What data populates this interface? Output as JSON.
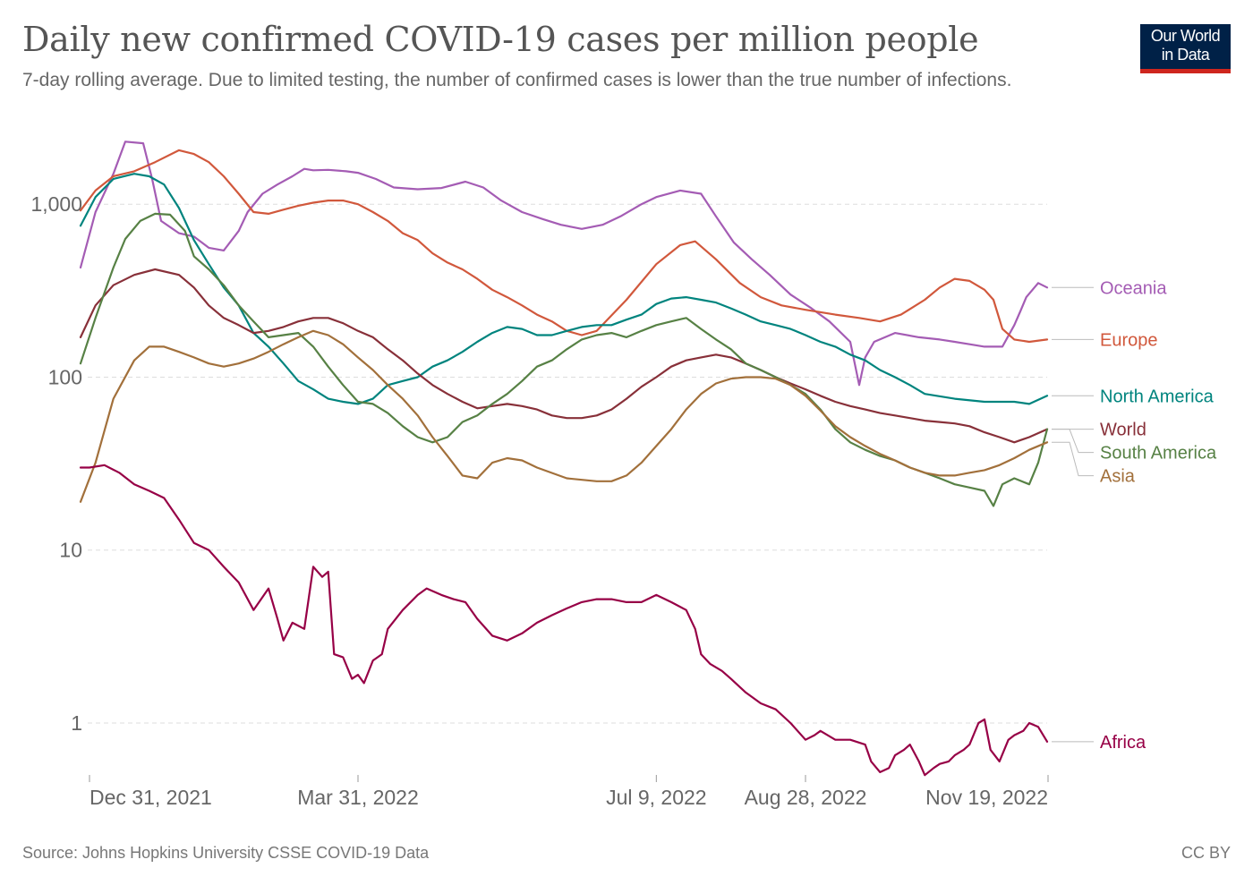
{
  "header": {
    "title": "Daily new confirmed COVID-19 cases per million people",
    "subtitle": "7-day rolling average. Due to limited testing, the number of confirmed cases is lower than the true number of infections."
  },
  "logo": {
    "line1": "Our World",
    "line2": "in Data",
    "bg_color": "#002147",
    "bar_color": "#ce261e"
  },
  "footer": {
    "source": "Source: Johns Hopkins University CSSE COVID-19 Data",
    "license": "CC BY"
  },
  "chart_data": {
    "type": "line",
    "title": "Daily new confirmed COVID-19 cases per million people",
    "xlabel": "",
    "ylabel": "",
    "yscale": "log",
    "ylim": [
      0.45,
      2600
    ],
    "xlim": [
      -3,
      321
    ],
    "y_ticks": [
      {
        "value": 1,
        "label": "1"
      },
      {
        "value": 10,
        "label": "10"
      },
      {
        "value": 100,
        "label": "100"
      },
      {
        "value": 1000,
        "label": "1,000"
      }
    ],
    "x_ticks": [
      {
        "day": 0,
        "label": "Dec 31, 2021"
      },
      {
        "day": 90,
        "label": "Mar 31, 2022"
      },
      {
        "day": 190,
        "label": "Jul 9, 2022"
      },
      {
        "day": 240,
        "label": "Aug 28, 2022"
      },
      {
        "day": 323,
        "label": "Nov 19, 2022"
      }
    ],
    "grid": "horizontal dashed",
    "legend_position": "right",
    "series": [
      {
        "name": "Oceania",
        "color": "#a45cb4",
        "x": [
          -3,
          2,
          8,
          12,
          18,
          21,
          24,
          30,
          35,
          40,
          45,
          50,
          53,
          58,
          63,
          68,
          72,
          75,
          80,
          86,
          90,
          96,
          102,
          110,
          118,
          126,
          132,
          138,
          145,
          152,
          158,
          165,
          172,
          178,
          185,
          190,
          198,
          205,
          210,
          216,
          222,
          228,
          235,
          242,
          248,
          255,
          258,
          260,
          263,
          270,
          278,
          285,
          290,
          295,
          300,
          306,
          310,
          312,
          314,
          318,
          321
        ],
        "y": [
          430,
          900,
          1500,
          2300,
          2250,
          1400,
          800,
          680,
          650,
          560,
          540,
          700,
          900,
          1150,
          1300,
          1450,
          1600,
          1570,
          1580,
          1550,
          1520,
          1400,
          1250,
          1220,
          1240,
          1350,
          1250,
          1050,
          900,
          820,
          760,
          720,
          760,
          850,
          1000,
          1100,
          1200,
          1150,
          850,
          600,
          480,
          390,
          300,
          250,
          210,
          160,
          90,
          130,
          160,
          180,
          170,
          165,
          160,
          155,
          150,
          150,
          200,
          240,
          290,
          350,
          330
        ]
      },
      {
        "name": "Europe",
        "color": "#d1583c",
        "x": [
          -3,
          2,
          8,
          15,
          22,
          30,
          35,
          40,
          45,
          50,
          55,
          60,
          65,
          70,
          75,
          80,
          85,
          90,
          95,
          100,
          105,
          110,
          115,
          120,
          125,
          130,
          135,
          140,
          145,
          150,
          155,
          160,
          165,
          170,
          180,
          190,
          198,
          203,
          210,
          218,
          225,
          232,
          240,
          250,
          258,
          265,
          272,
          280,
          285,
          290,
          295,
          300,
          303,
          306,
          310,
          315,
          321
        ],
        "y": [
          920,
          1200,
          1450,
          1550,
          1750,
          2050,
          1950,
          1750,
          1450,
          1150,
          900,
          880,
          930,
          980,
          1020,
          1050,
          1050,
          1000,
          900,
          800,
          680,
          620,
          520,
          460,
          420,
          370,
          320,
          290,
          260,
          230,
          210,
          185,
          175,
          185,
          280,
          450,
          580,
          610,
          480,
          350,
          290,
          260,
          245,
          230,
          220,
          210,
          230,
          280,
          330,
          370,
          360,
          320,
          280,
          190,
          165,
          160,
          165
        ]
      },
      {
        "name": "North America",
        "color": "#00847e",
        "x": [
          -3,
          2,
          8,
          15,
          20,
          25,
          30,
          35,
          40,
          45,
          50,
          55,
          60,
          65,
          70,
          75,
          80,
          85,
          90,
          95,
          100,
          105,
          110,
          115,
          120,
          125,
          130,
          135,
          140,
          145,
          150,
          155,
          160,
          165,
          170,
          175,
          180,
          185,
          190,
          195,
          200,
          205,
          210,
          215,
          220,
          225,
          230,
          235,
          240,
          245,
          250,
          255,
          260,
          265,
          270,
          275,
          280,
          290,
          300,
          310,
          315,
          321
        ],
        "y": [
          750,
          1100,
          1400,
          1500,
          1450,
          1300,
          950,
          620,
          450,
          330,
          260,
          180,
          150,
          120,
          95,
          85,
          75,
          72,
          70,
          75,
          90,
          95,
          100,
          115,
          125,
          140,
          160,
          180,
          195,
          190,
          175,
          175,
          185,
          195,
          200,
          200,
          215,
          230,
          265,
          285,
          290,
          280,
          270,
          250,
          230,
          210,
          200,
          190,
          175,
          160,
          150,
          135,
          125,
          110,
          100,
          90,
          80,
          75,
          72,
          72,
          70,
          78
        ]
      },
      {
        "name": "World",
        "color": "#883039",
        "x": [
          -3,
          2,
          8,
          15,
          22,
          30,
          35,
          40,
          45,
          50,
          55,
          60,
          65,
          70,
          75,
          80,
          85,
          90,
          95,
          100,
          105,
          110,
          115,
          120,
          125,
          130,
          135,
          140,
          145,
          150,
          155,
          160,
          165,
          170,
          175,
          180,
          185,
          190,
          195,
          200,
          205,
          210,
          215,
          220,
          225,
          230,
          235,
          240,
          245,
          250,
          255,
          260,
          265,
          270,
          275,
          280,
          285,
          290,
          295,
          300,
          305,
          310,
          315,
          321
        ],
        "y": [
          170,
          260,
          340,
          390,
          420,
          390,
          330,
          260,
          220,
          200,
          180,
          185,
          195,
          210,
          220,
          220,
          205,
          185,
          170,
          145,
          125,
          105,
          90,
          80,
          72,
          66,
          68,
          70,
          68,
          65,
          60,
          58,
          58,
          60,
          65,
          75,
          88,
          100,
          115,
          125,
          130,
          135,
          130,
          120,
          110,
          100,
          92,
          85,
          78,
          72,
          68,
          65,
          62,
          60,
          58,
          56,
          55,
          54,
          52,
          48,
          45,
          42,
          45,
          50
        ]
      },
      {
        "name": "South America",
        "color": "#578145",
        "x": [
          -3,
          2,
          8,
          12,
          17,
          22,
          27,
          32,
          35,
          40,
          45,
          50,
          55,
          60,
          65,
          70,
          75,
          80,
          85,
          90,
          95,
          100,
          105,
          110,
          115,
          120,
          125,
          130,
          135,
          140,
          145,
          150,
          155,
          160,
          165,
          170,
          175,
          180,
          185,
          190,
          195,
          200,
          205,
          210,
          215,
          220,
          225,
          230,
          235,
          240,
          245,
          250,
          255,
          260,
          265,
          270,
          275,
          280,
          285,
          290,
          295,
          300,
          303,
          306,
          310,
          315,
          318,
          321
        ],
        "y": [
          120,
          220,
          430,
          630,
          800,
          880,
          870,
          700,
          500,
          420,
          340,
          260,
          210,
          170,
          175,
          180,
          150,
          115,
          90,
          72,
          70,
          62,
          52,
          45,
          42,
          45,
          55,
          60,
          70,
          80,
          95,
          115,
          125,
          145,
          165,
          175,
          180,
          170,
          185,
          200,
          210,
          220,
          190,
          165,
          145,
          120,
          110,
          100,
          90,
          80,
          65,
          50,
          42,
          38,
          35,
          33,
          30,
          28,
          26,
          24,
          23,
          22,
          18,
          24,
          26,
          24,
          32,
          50
        ]
      },
      {
        "name": "Asia",
        "color": "#a2703b",
        "x": [
          -3,
          2,
          8,
          15,
          20,
          25,
          30,
          35,
          40,
          45,
          50,
          55,
          60,
          65,
          70,
          75,
          80,
          85,
          90,
          95,
          100,
          105,
          110,
          115,
          120,
          125,
          130,
          135,
          140,
          145,
          150,
          160,
          170,
          175,
          180,
          185,
          190,
          195,
          200,
          205,
          210,
          215,
          220,
          225,
          230,
          235,
          240,
          245,
          250,
          255,
          260,
          265,
          270,
          275,
          280,
          285,
          290,
          295,
          300,
          305,
          310,
          315,
          321
        ],
        "y": [
          19,
          32,
          75,
          125,
          150,
          150,
          140,
          130,
          120,
          115,
          120,
          128,
          140,
          155,
          170,
          185,
          175,
          155,
          130,
          110,
          90,
          75,
          60,
          45,
          35,
          27,
          26,
          32,
          34,
          33,
          30,
          26,
          25,
          25,
          27,
          32,
          40,
          50,
          65,
          80,
          92,
          98,
          100,
          100,
          98,
          90,
          78,
          64,
          52,
          45,
          40,
          36,
          33,
          30,
          28,
          27,
          27,
          28,
          29,
          31,
          34,
          38,
          42
        ]
      },
      {
        "name": "Africa",
        "color": "#970046",
        "x": [
          -3,
          0,
          5,
          10,
          15,
          20,
          25,
          30,
          35,
          40,
          45,
          50,
          55,
          60,
          63,
          65,
          68,
          72,
          75,
          78,
          80,
          82,
          85,
          88,
          90,
          92,
          95,
          98,
          100,
          105,
          110,
          113,
          118,
          122,
          126,
          130,
          135,
          140,
          145,
          150,
          155,
          160,
          165,
          170,
          175,
          180,
          185,
          190,
          195,
          200,
          203,
          205,
          208,
          212,
          215,
          220,
          225,
          230,
          235,
          240,
          243,
          245,
          250,
          255,
          260,
          262,
          265,
          268,
          270,
          273,
          275,
          278,
          280,
          283,
          285,
          288,
          290,
          293,
          295,
          298,
          300,
          302,
          305,
          308,
          310,
          313,
          315,
          318,
          321
        ],
        "y": [
          30,
          30,
          31,
          28,
          24,
          22,
          20,
          15,
          11,
          10,
          8,
          6.5,
          4.5,
          6,
          4,
          3,
          3.8,
          3.5,
          8,
          7,
          7.5,
          2.5,
          2.4,
          1.8,
          1.9,
          1.7,
          2.3,
          2.5,
          3.5,
          4.5,
          5.5,
          6,
          5.5,
          5.2,
          5,
          4,
          3.2,
          3,
          3.3,
          3.8,
          4.2,
          4.6,
          5,
          5.2,
          5.2,
          5,
          5,
          5.5,
          5,
          4.5,
          3.5,
          2.5,
          2.2,
          2,
          1.8,
          1.5,
          1.3,
          1.2,
          1.0,
          0.8,
          0.85,
          0.9,
          0.8,
          0.8,
          0.75,
          0.6,
          0.52,
          0.55,
          0.65,
          0.7,
          0.75,
          0.6,
          0.5,
          0.55,
          0.58,
          0.6,
          0.65,
          0.7,
          0.75,
          1.0,
          1.05,
          0.7,
          0.6,
          0.8,
          0.85,
          0.9,
          1.0,
          0.95,
          0.78
        ]
      }
    ],
    "legend": [
      {
        "series": "Oceania",
        "label": "Oceania"
      },
      {
        "series": "Europe",
        "label": "Europe"
      },
      {
        "series": "North America",
        "label": "North America"
      },
      {
        "series": "World",
        "label": "World"
      },
      {
        "series": "South America",
        "label": "South America"
      },
      {
        "series": "Asia",
        "label": "Asia"
      },
      {
        "series": "Africa",
        "label": "Africa"
      }
    ]
  }
}
